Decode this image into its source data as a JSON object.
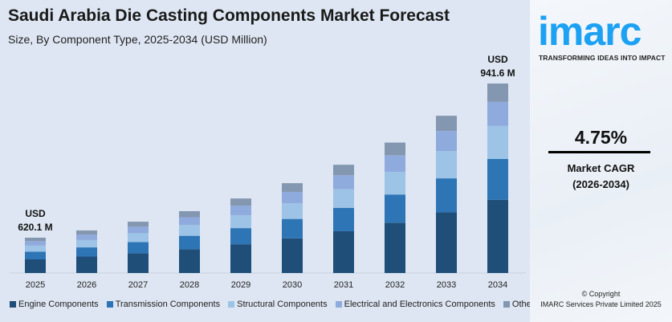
{
  "header": {
    "title": "Saudi Arabia Die Casting Components Market Forecast",
    "subtitle": "Size, By Component Type, 2025-2034 (USD Million)"
  },
  "chart_data": {
    "type": "bar",
    "stacked": true,
    "title": "Saudi Arabia Die Casting Components Market Forecast",
    "subtitle": "Size, By Component Type, 2025-2034 (USD Million)",
    "xlabel": "",
    "ylabel": "",
    "categories": [
      "2025",
      "2026",
      "2027",
      "2028",
      "2029",
      "2030",
      "2031",
      "2032",
      "2033",
      "2034"
    ],
    "totals": [
      620.1,
      649.6,
      680.4,
      712.7,
      746.6,
      782.1,
      819.2,
      858.1,
      898.9,
      941.6
    ],
    "series": [
      {
        "name": "Engine Components",
        "color": "#1f4e79",
        "values": [
          239.4,
          250.7,
          262.6,
          275.1,
          288.2,
          301.9,
          316.2,
          331.2,
          347.0,
          363.5
        ]
      },
      {
        "name": "Transmission Components",
        "color": "#2e75b6",
        "values": [
          133.9,
          140.3,
          147.0,
          153.9,
          161.3,
          168.9,
          177.0,
          185.3,
          194.2,
          203.4
        ]
      },
      {
        "name": "Structural Components",
        "color": "#9dc3e6",
        "values": [
          107.9,
          113.0,
          118.4,
          124.0,
          129.9,
          136.1,
          142.5,
          149.3,
          156.4,
          163.8
        ]
      },
      {
        "name": "Electrical and Electronics Components",
        "color": "#8faadc",
        "values": [
          78.8,
          82.5,
          86.4,
          90.5,
          94.8,
          99.3,
          104.0,
          109.0,
          114.2,
          119.6
        ]
      },
      {
        "name": "Others",
        "color": "#8497b0",
        "values": [
          60.1,
          63.1,
          66.0,
          69.2,
          72.4,
          75.9,
          79.5,
          83.3,
          87.1,
          91.3
        ]
      }
    ],
    "annotations": [
      {
        "category": "2025",
        "line1": "USD",
        "line2": "620.1 M"
      },
      {
        "category": "2034",
        "line1": "USD",
        "line2": "941.6 M"
      }
    ],
    "grid": false,
    "legend": "bottom"
  },
  "sidebar": {
    "logo": "imarc",
    "tagline": "TRANSFORMING IDEAS INTO IMPACT",
    "cagr_value": "4.75%",
    "cagr_label": "Market CAGR",
    "cagr_period": "(2026-2034)",
    "copyright": "© Copyright",
    "company": "IMARC Services Private Limited 2025"
  },
  "colors": {
    "background": "#dde6f2",
    "brand": "#1da1f2"
  }
}
